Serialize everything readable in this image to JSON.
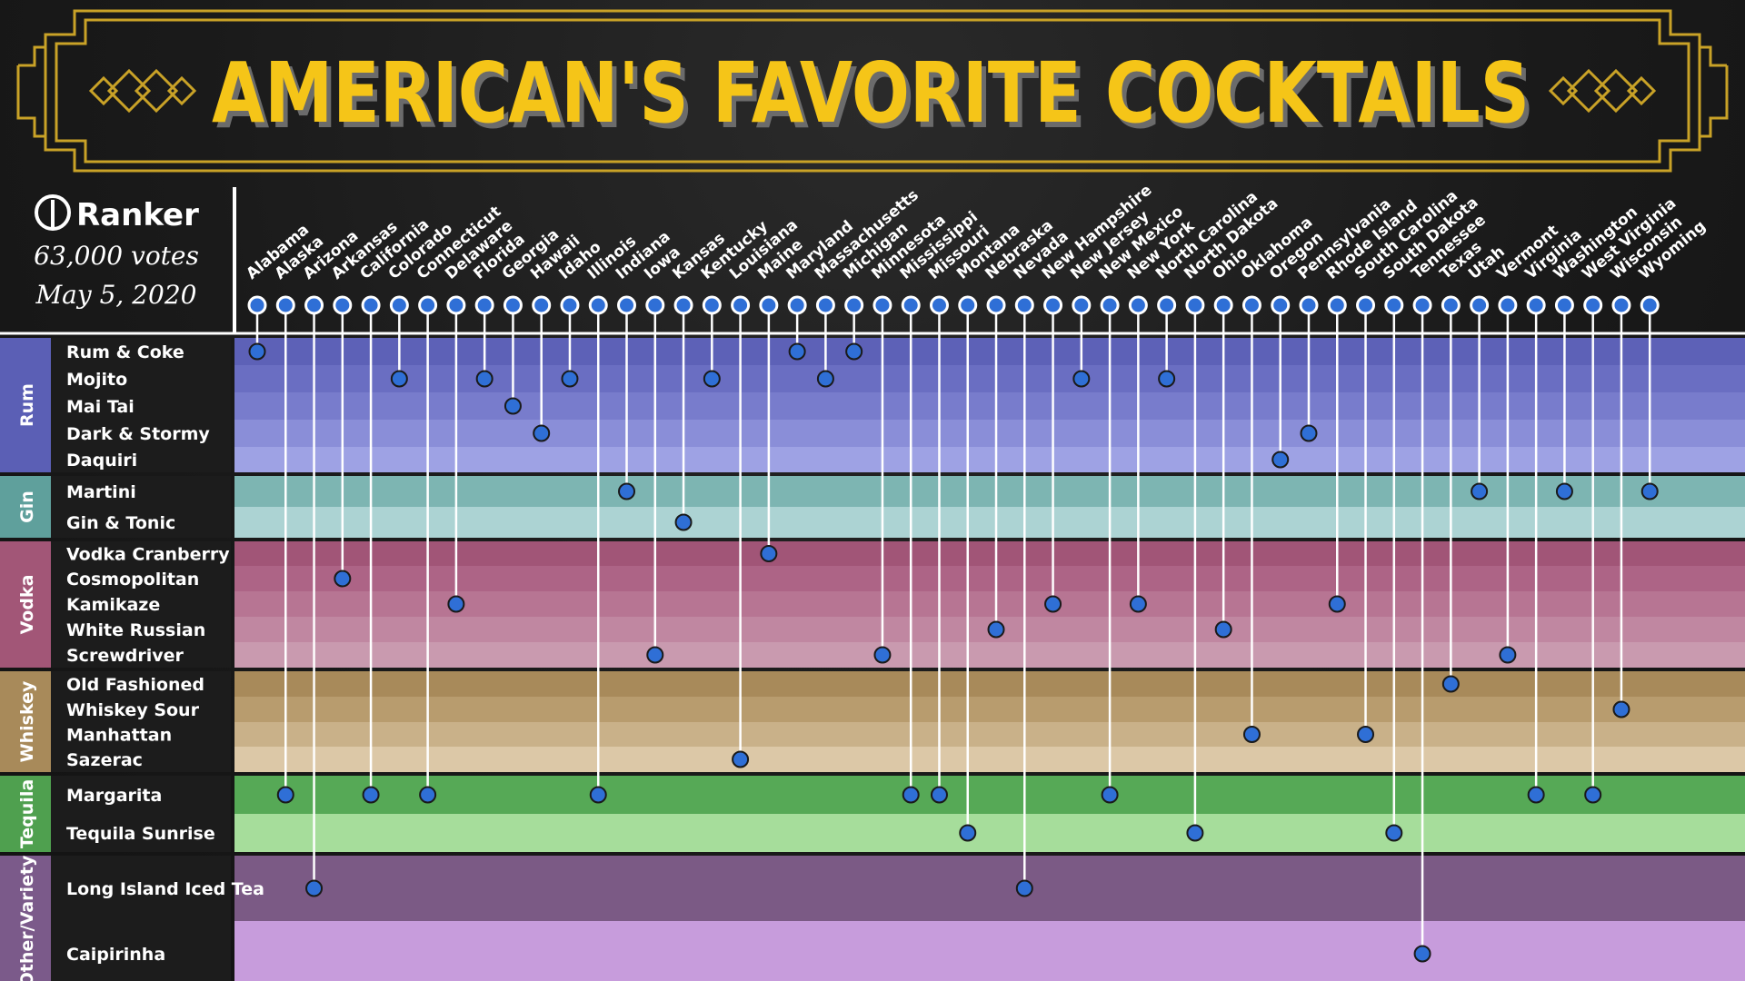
{
  "title": "AMERICAN'S FAVORITE COCKTAILS",
  "brand": {
    "logo_text": "Ranker",
    "votes": "63,000 votes",
    "date": "May 5, 2020"
  },
  "colors": {
    "gold": "#f5c518",
    "frame": "#c9a227",
    "dot": "#2f6fd6",
    "line": "#ffffff"
  },
  "chart_data": {
    "type": "table",
    "title": "AMERICAN'S FAVORITE COCKTAILS",
    "states": [
      "Alabama",
      "Alaska",
      "Arizona",
      "Arkansas",
      "California",
      "Colorado",
      "Connecticut",
      "Delaware",
      "Florida",
      "Georgia",
      "Hawaii",
      "Idaho",
      "Illinois",
      "Indiana",
      "Iowa",
      "Kansas",
      "Kentucky",
      "Louisiana",
      "Maine",
      "Maryland",
      "Massachusetts",
      "Michigan",
      "Minnesota",
      "Mississippi",
      "Missouri",
      "Montana",
      "Nebraska",
      "Nevada",
      "New Hampshire",
      "New Jersey",
      "New Mexico",
      "New York",
      "North Carolina",
      "North Dakota",
      "Ohio",
      "Oklahoma",
      "Oregon",
      "Pennsylvania",
      "Rhode Island",
      "South Carolina",
      "South Dakota",
      "Tennessee",
      "Texas",
      "Utah",
      "Vermont",
      "Virginia",
      "Washington",
      "West Virginia",
      "Wisconsin",
      "Wyoming"
    ],
    "groups": [
      {
        "name": "Rum",
        "color": "#5b5fb5",
        "rows": [
          {
            "label": "Rum & Coke",
            "color": "#5d61b7"
          },
          {
            "label": "Mojito",
            "color": "#6a6ec2"
          },
          {
            "label": "Mai Tai",
            "color": "#787ccc"
          },
          {
            "label": "Dark & Stormy",
            "color": "#8a8ed8"
          },
          {
            "label": "Daquiri",
            "color": "#9ea2e4"
          }
        ]
      },
      {
        "name": "Gin",
        "color": "#5fa09c",
        "rows": [
          {
            "label": "Martini",
            "color": "#7db5b2"
          },
          {
            "label": "Gin & Tonic",
            "color": "#acd3d3"
          }
        ]
      },
      {
        "name": "Vodka",
        "color": "#a25677",
        "rows": [
          {
            "label": "Vodka Cranberry",
            "color": "#a15577"
          },
          {
            "label": "Cosmopolitan",
            "color": "#ad6486"
          },
          {
            "label": "Kamikaze",
            "color": "#b77593"
          },
          {
            "label": "White Russian",
            "color": "#c087a1"
          },
          {
            "label": "Screwdriver",
            "color": "#c99aaf"
          }
        ]
      },
      {
        "name": "Whiskey",
        "color": "#a88a5a",
        "rows": [
          {
            "label": "Old Fashioned",
            "color": "#a88a5a"
          },
          {
            "label": "Whiskey Sour",
            "color": "#b89c6e"
          },
          {
            "label": "Manhattan",
            "color": "#c9b189"
          },
          {
            "label": "Sazerac",
            "color": "#dcc8a7"
          }
        ]
      },
      {
        "name": "Tequila",
        "color": "#4fa04f",
        "rows": [
          {
            "label": "Margarita",
            "color": "#56a956"
          },
          {
            "label": "Tequila Sunrise",
            "color": "#a6dd9b"
          }
        ]
      },
      {
        "name": "Other/Variety",
        "color": "#7b5a8a",
        "rows": [
          {
            "label": "Long Island Iced Tea",
            "color": "#7b5a85"
          },
          {
            "label": "Caipirinha",
            "color": "#c79cdc"
          }
        ]
      }
    ],
    "favorites": {
      "Alabama": "Rum & Coke",
      "Alaska": "Margarita",
      "Arizona": "Long Island Iced Tea",
      "Arkansas": "Cosmopolitan",
      "California": "Margarita",
      "Colorado": "Mojito",
      "Connecticut": "Margarita",
      "Delaware": "Kamikaze",
      "Florida": "Mojito",
      "Georgia": "Mai Tai",
      "Hawaii": "Dark & Stormy",
      "Idaho": "Mojito",
      "Illinois": "Margarita",
      "Indiana": "Martini",
      "Iowa": "Screwdriver",
      "Kansas": "Gin & Tonic",
      "Kentucky": "Mojito",
      "Louisiana": "Sazerac",
      "Maine": "Vodka Cranberry",
      "Maryland": "Rum & Coke",
      "Massachusetts": "Mojito",
      "Michigan": "Rum & Coke",
      "Minnesota": "Screwdriver",
      "Mississippi": "Margarita",
      "Missouri": "Margarita",
      "Montana": "Tequila Sunrise",
      "Nebraska": "White Russian",
      "Nevada": "Long Island Iced Tea",
      "New Hampshire": "Kamikaze",
      "New Jersey": "Mojito",
      "New Mexico": "Margarita",
      "New York": "Kamikaze",
      "North Carolina": "Mojito",
      "North Dakota": "Tequila Sunrise",
      "Ohio": "White Russian",
      "Oklahoma": "Manhattan",
      "Oregon": "Daquiri",
      "Pennsylvania": "Dark & Stormy",
      "Rhode Island": "Kamikaze",
      "South Carolina": "Manhattan",
      "South Dakota": "Tequila Sunrise",
      "Tennessee": "Caipirinha",
      "Texas": "Old Fashioned",
      "Utah": "Martini",
      "Vermont": "Screwdriver",
      "Virginia": "Margarita",
      "Washington": "Martini",
      "West Virginia": "Margarita",
      "Wisconsin": "Whiskey Sour",
      "Wyoming": "Martini"
    }
  }
}
